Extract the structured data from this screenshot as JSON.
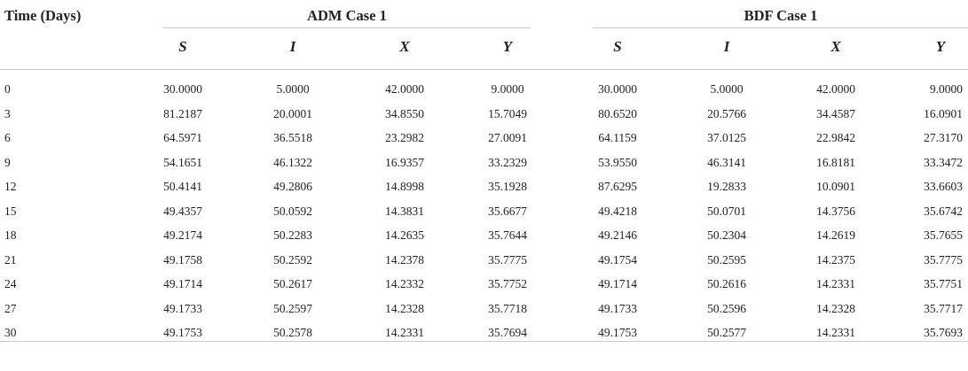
{
  "table": {
    "time_header": "Time (Days)",
    "group_headers": [
      "ADM Case 1",
      "BDF Case 1"
    ],
    "sub_headers": [
      "S",
      "I",
      "X",
      "Y",
      "S",
      "I",
      "X",
      "Y"
    ],
    "rows": [
      [
        "0",
        "30.0000",
        "5.0000",
        "42.0000",
        "9.0000",
        "30.0000",
        "5.0000",
        "42.0000",
        "9.0000"
      ],
      [
        "3",
        "81.2187",
        "20.0001",
        "34.8550",
        "15.7049",
        "80.6520",
        "20.5766",
        "34.4587",
        "16.0901"
      ],
      [
        "6",
        "64.5971",
        "36.5518",
        "23.2982",
        "27.0091",
        "64.1159",
        "37.0125",
        "22.9842",
        "27.3170"
      ],
      [
        "9",
        "54.1651",
        "46.1322",
        "16.9357",
        "33.2329",
        "53.9550",
        "46.3141",
        "16.8181",
        "33.3472"
      ],
      [
        "12",
        "50.4141",
        "49.2806",
        "14.8998",
        "35.1928",
        "87.6295",
        "19.2833",
        "10.0901",
        "33.6603"
      ],
      [
        "15",
        "49.4357",
        "50.0592",
        "14.3831",
        "35.6677",
        "49.4218",
        "50.0701",
        "14.3756",
        "35.6742"
      ],
      [
        "18",
        "49.2174",
        "50.2283",
        "14.2635",
        "35.7644",
        "49.2146",
        "50.2304",
        "14.2619",
        "35.7655"
      ],
      [
        "21",
        "49.1758",
        "50.2592",
        "14.2378",
        "35.7775",
        "49.1754",
        "50.2595",
        "14.2375",
        "35.7775"
      ],
      [
        "24",
        "49.1714",
        "50.2617",
        "14.2332",
        "35.7752",
        "49.1714",
        "50.2616",
        "14.2331",
        "35.7751"
      ],
      [
        "27",
        "49.1733",
        "50.2597",
        "14.2328",
        "35.7718",
        "49.1733",
        "50.2596",
        "14.2328",
        "35.7717"
      ],
      [
        "30",
        "49.1753",
        "50.2578",
        "14.2331",
        "35.7694",
        "49.1753",
        "50.2577",
        "14.2331",
        "35.7693"
      ]
    ]
  }
}
